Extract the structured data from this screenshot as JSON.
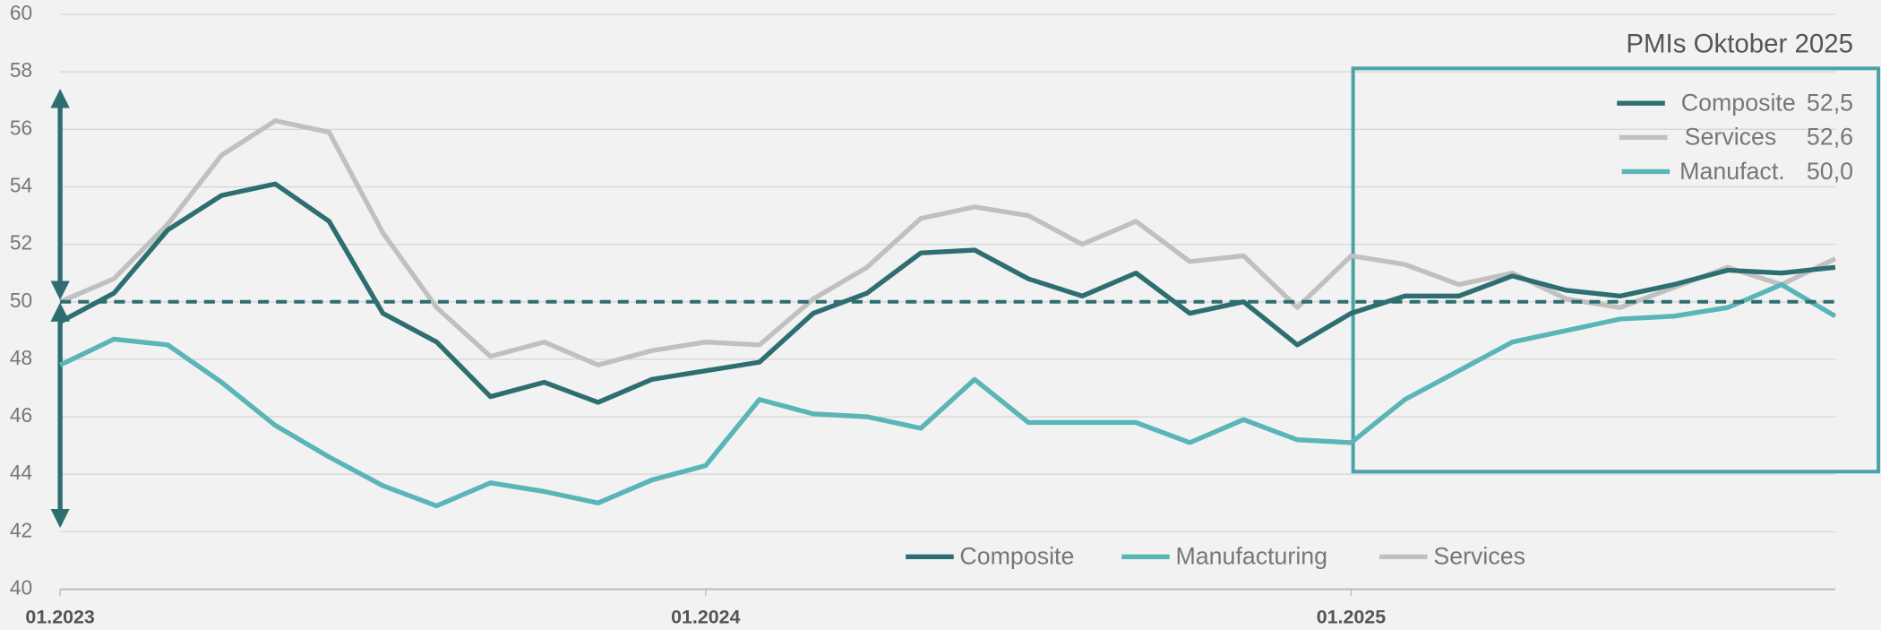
{
  "chart_data": {
    "type": "line",
    "title": "PMIs Oktober 2025",
    "categories": [
      "01.2023",
      null,
      null,
      null,
      null,
      null,
      null,
      null,
      null,
      null,
      null,
      null,
      "01.2024",
      null,
      null,
      null,
      null,
      null,
      null,
      null,
      null,
      null,
      null,
      null,
      "01.2025",
      null,
      null,
      null,
      null,
      null,
      null,
      null,
      null,
      null
    ],
    "series": [
      {
        "name": "Composite",
        "color": "#2e6e70",
        "values": [
          49.3,
          50.3,
          52.5,
          53.7,
          54.1,
          52.8,
          49.6,
          48.6,
          46.7,
          47.2,
          46.5,
          47.3,
          47.6,
          47.9,
          49.6,
          50.3,
          51.7,
          51.8,
          50.8,
          50.2,
          51.0,
          49.6,
          50.0,
          48.5,
          49.6,
          50.2,
          50.2,
          50.9,
          50.4,
          50.2,
          50.6,
          51.1,
          51.0,
          51.2
        ]
      },
      {
        "name": "Manufacturing",
        "color": "#5ab5b8",
        "values": [
          47.8,
          48.7,
          48.5,
          47.2,
          45.7,
          44.6,
          43.6,
          42.9,
          43.7,
          43.4,
          43.0,
          43.8,
          44.3,
          46.6,
          46.1,
          46.0,
          45.6,
          47.3,
          45.8,
          45.8,
          45.8,
          45.1,
          45.9,
          45.2,
          45.1,
          46.6,
          47.6,
          48.6,
          49.0,
          49.4,
          49.5,
          49.8,
          50.6,
          49.5
        ]
      },
      {
        "name": "Services",
        "color": "#c0c0c0",
        "values": [
          50.0,
          50.8,
          52.7,
          55.1,
          56.3,
          55.9,
          52.4,
          49.8,
          48.1,
          48.6,
          47.8,
          48.3,
          48.6,
          48.5,
          50.1,
          51.2,
          52.9,
          53.3,
          53.0,
          52.0,
          52.8,
          51.4,
          51.6,
          49.8,
          51.6,
          51.3,
          50.6,
          51.0,
          50.1,
          49.8,
          50.5,
          51.2,
          50.6,
          51.5
        ]
      }
    ],
    "ylim": [
      40,
      60
    ],
    "yticks": [
      40,
      42,
      44,
      46,
      48,
      50,
      52,
      54,
      56,
      58,
      60
    ],
    "grid": true,
    "reference_line": 50,
    "box_legend": [
      {
        "name": "Composite",
        "value_label": "52,5",
        "color": "#2e6e70"
      },
      {
        "name": "Services",
        "value_label": "52,6",
        "color": "#c0c0c0"
      },
      {
        "name": "Manufact.",
        "value_label": "50,0",
        "color": "#5ab5b8"
      }
    ]
  }
}
